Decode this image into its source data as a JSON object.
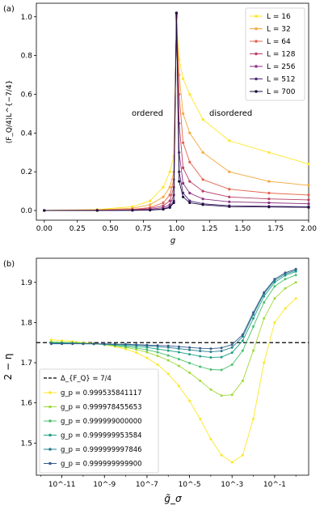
{
  "chart_data": [
    {
      "type": "line",
      "panel_label": "(a)",
      "xlabel": "g",
      "ylabel": "⟨F_Q/4⟩L^{−7/4}",
      "xlim": [
        -0.06,
        2.0
      ],
      "ylim": [
        -0.05,
        1.07
      ],
      "xticks": [
        "0.00",
        "0.25",
        "0.50",
        "0.75",
        "1.00",
        "1.25",
        "1.50",
        "1.75",
        "2.00"
      ],
      "yticks": [
        "0.0",
        "0.2",
        "0.4",
        "0.6",
        "0.8",
        "1.0"
      ],
      "legend_position": "top-right",
      "annotations": [
        {
          "text": "ordered",
          "x": 0.72,
          "y": 0.5
        },
        {
          "text": "disordered",
          "x": 1.36,
          "y": 0.5
        }
      ],
      "series": [
        {
          "name": "L = 16",
          "color": "#fde725",
          "x": [
            0,
            0.4,
            0.667,
            0.8,
            0.9,
            0.95,
            0.98,
            1.0,
            1.02,
            1.05,
            1.1,
            1.2,
            1.4,
            1.7,
            2.0
          ],
          "y": [
            0.0,
            0.005,
            0.02,
            0.05,
            0.12,
            0.2,
            0.28,
            0.98,
            0.78,
            0.68,
            0.6,
            0.47,
            0.36,
            0.3,
            0.24
          ]
        },
        {
          "name": "L = 32",
          "color": "#f4a83a",
          "x": [
            0,
            0.4,
            0.667,
            0.8,
            0.9,
            0.95,
            0.98,
            1.0,
            1.02,
            1.05,
            1.1,
            1.2,
            1.4,
            1.7,
            2.0
          ],
          "y": [
            0.0,
            0.003,
            0.012,
            0.03,
            0.07,
            0.12,
            0.2,
            0.99,
            0.7,
            0.5,
            0.4,
            0.3,
            0.2,
            0.15,
            0.13
          ]
        },
        {
          "name": "L = 64",
          "color": "#e5624c",
          "x": [
            0,
            0.4,
            0.667,
            0.8,
            0.9,
            0.95,
            0.98,
            1.0,
            1.02,
            1.05,
            1.1,
            1.2,
            1.4,
            1.7,
            2.0
          ],
          "y": [
            0.0,
            0.002,
            0.006,
            0.015,
            0.04,
            0.08,
            0.16,
            1.0,
            0.6,
            0.35,
            0.25,
            0.16,
            0.11,
            0.09,
            0.08
          ]
        },
        {
          "name": "L = 128",
          "color": "#b83f63",
          "x": [
            0,
            0.4,
            0.667,
            0.8,
            0.9,
            0.95,
            0.98,
            1.0,
            1.02,
            1.05,
            1.1,
            1.2,
            1.4,
            1.7,
            2.0
          ],
          "y": [
            0.0,
            0.001,
            0.004,
            0.01,
            0.025,
            0.05,
            0.12,
            1.01,
            0.45,
            0.22,
            0.15,
            0.1,
            0.07,
            0.06,
            0.055
          ]
        },
        {
          "name": "L = 256",
          "color": "#8a3282",
          "x": [
            0,
            0.4,
            0.667,
            0.8,
            0.9,
            0.95,
            0.98,
            1.0,
            1.02,
            1.05,
            1.1,
            1.2,
            1.4,
            1.7,
            2.0
          ],
          "y": [
            0.0,
            0.001,
            0.002,
            0.006,
            0.015,
            0.03,
            0.08,
            1.02,
            0.3,
            0.14,
            0.09,
            0.06,
            0.045,
            0.04,
            0.035
          ]
        },
        {
          "name": "L = 512",
          "color": "#4d2a78",
          "x": [
            0,
            0.4,
            0.667,
            0.8,
            0.9,
            0.95,
            0.98,
            1.0,
            1.02,
            1.05,
            1.1,
            1.2,
            1.4,
            1.7,
            2.0
          ],
          "y": [
            0.0,
            0.0,
            0.001,
            0.003,
            0.008,
            0.02,
            0.05,
            1.02,
            0.2,
            0.09,
            0.05,
            0.035,
            0.025,
            0.022,
            0.02
          ]
        },
        {
          "name": "L = 700",
          "color": "#1e0f3e",
          "x": [
            0,
            0.4,
            0.667,
            0.8,
            0.9,
            0.95,
            0.98,
            1.0,
            1.02,
            1.05,
            1.1,
            1.2,
            1.4,
            1.7,
            2.0
          ],
          "y": [
            0.0,
            0.0,
            0.001,
            0.002,
            0.006,
            0.015,
            0.04,
            1.02,
            0.15,
            0.07,
            0.04,
            0.03,
            0.02,
            0.018,
            0.016
          ]
        }
      ]
    },
    {
      "type": "line",
      "panel_label": "(b)",
      "xlabel": "g̃_σ",
      "ylabel": "2 − η",
      "xscale": "log",
      "xlim_exp": [
        -12.2,
        0.6
      ],
      "ylim": [
        1.42,
        1.96
      ],
      "xticks": [
        "10^-11",
        "10^-9",
        "10^-7",
        "10^-5",
        "10^-3",
        "10^-1"
      ],
      "yticks": [
        "1.5",
        "1.6",
        "1.7",
        "1.8",
        "1.9"
      ],
      "legend_position": "bottom-left",
      "reference_line": {
        "name": "Δ_{F_Q} = 7/4",
        "value": 1.75,
        "style": "dashed",
        "color": "#000000"
      },
      "series": [
        {
          "name": "g_p = 0.999535841117",
          "color": "#fde725",
          "x_exp": [
            -11.5,
            -11,
            -10.5,
            -10,
            -9.5,
            -9,
            -8.5,
            -8,
            -7.5,
            -7,
            -6.5,
            -6,
            -5.5,
            -5,
            -4.5,
            -4,
            -3.5,
            -3,
            -2.5,
            -2,
            -1.5,
            -1,
            -0.5,
            0
          ],
          "y": [
            1.757,
            1.755,
            1.753,
            1.75,
            1.748,
            1.745,
            1.74,
            1.734,
            1.725,
            1.712,
            1.695,
            1.672,
            1.642,
            1.605,
            1.56,
            1.51,
            1.47,
            1.452,
            1.47,
            1.56,
            1.7,
            1.8,
            1.835,
            1.86
          ]
        },
        {
          "name": "g_p = 0.999978455653",
          "color": "#a0da39",
          "x_exp": [
            -11.5,
            -11,
            -10.5,
            -10,
            -9.5,
            -9,
            -8.5,
            -8,
            -7.5,
            -7,
            -6.5,
            -6,
            -5.5,
            -5,
            -4.5,
            -4,
            -3.5,
            -3,
            -2.5,
            -2,
            -1.5,
            -1,
            -0.5,
            0
          ],
          "y": [
            1.752,
            1.751,
            1.75,
            1.749,
            1.747,
            1.745,
            1.742,
            1.738,
            1.733,
            1.726,
            1.717,
            1.706,
            1.692,
            1.675,
            1.655,
            1.633,
            1.618,
            1.62,
            1.655,
            1.73,
            1.81,
            1.86,
            1.885,
            1.9
          ]
        },
        {
          "name": "g_p = 0.999999000000",
          "color": "#4ac16d",
          "x_exp": [
            -11.5,
            -11,
            -10.5,
            -10,
            -9.5,
            -9,
            -8.5,
            -8,
            -7.5,
            -7,
            -6.5,
            -6,
            -5.5,
            -5,
            -4.5,
            -4,
            -3.5,
            -3,
            -2.5,
            -2,
            -1.5,
            -1,
            -0.5,
            0
          ],
          "y": [
            1.75,
            1.75,
            1.749,
            1.748,
            1.747,
            1.745,
            1.743,
            1.74,
            1.737,
            1.732,
            1.726,
            1.718,
            1.709,
            1.699,
            1.69,
            1.683,
            1.682,
            1.695,
            1.73,
            1.79,
            1.85,
            1.89,
            1.908,
            1.918
          ]
        },
        {
          "name": "g_p = 0.999999953584",
          "color": "#1fa187",
          "x_exp": [
            -11.5,
            -11,
            -10.5,
            -10,
            -9.5,
            -9,
            -8.5,
            -8,
            -7.5,
            -7,
            -6.5,
            -6,
            -5.5,
            -5,
            -4.5,
            -4,
            -3.5,
            -3,
            -2.5,
            -2,
            -1.5,
            -1,
            -0.5,
            0
          ],
          "y": [
            1.749,
            1.749,
            1.748,
            1.748,
            1.747,
            1.746,
            1.745,
            1.743,
            1.741,
            1.738,
            1.734,
            1.73,
            1.726,
            1.721,
            1.716,
            1.713,
            1.714,
            1.725,
            1.755,
            1.81,
            1.865,
            1.9,
            1.917,
            1.927
          ]
        },
        {
          "name": "g_p = 0.999999997846",
          "color": "#277f8e",
          "x_exp": [
            -11.5,
            -11,
            -10.5,
            -10,
            -9.5,
            -9,
            -8.5,
            -8,
            -7.5,
            -7,
            -6.5,
            -6,
            -5.5,
            -5,
            -4.5,
            -4,
            -3.5,
            -3,
            -2.5,
            -2,
            -1.5,
            -1,
            -0.5,
            0
          ],
          "y": [
            1.748,
            1.748,
            1.748,
            1.747,
            1.747,
            1.746,
            1.746,
            1.745,
            1.744,
            1.742,
            1.74,
            1.738,
            1.735,
            1.732,
            1.729,
            1.727,
            1.729,
            1.738,
            1.765,
            1.82,
            1.872,
            1.905,
            1.921,
            1.93
          ]
        },
        {
          "name": "g_p = 0.999999999900",
          "color": "#365c8d",
          "x_exp": [
            -11.5,
            -11,
            -10.5,
            -10,
            -9.5,
            -9,
            -8.5,
            -8,
            -7.5,
            -7,
            -6.5,
            -6,
            -5.5,
            -5,
            -4.5,
            -4,
            -3.5,
            -3,
            -2.5,
            -2,
            -1.5,
            -1,
            -0.5,
            0
          ],
          "y": [
            1.747,
            1.747,
            1.747,
            1.747,
            1.747,
            1.747,
            1.746,
            1.746,
            1.745,
            1.744,
            1.743,
            1.742,
            1.74,
            1.738,
            1.736,
            1.735,
            1.737,
            1.745,
            1.77,
            1.825,
            1.875,
            1.908,
            1.924,
            1.933
          ]
        }
      ]
    }
  ]
}
